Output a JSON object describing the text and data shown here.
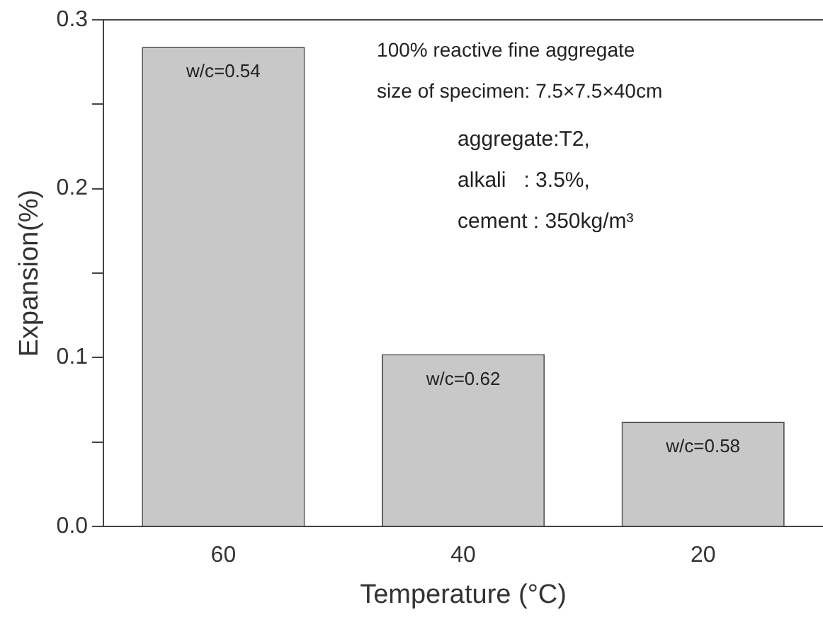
{
  "chart_data": {
    "type": "bar",
    "xlabel": "Temperature (°C)",
    "ylabel": "Expansion(%)",
    "categories": [
      "60",
      "40",
      "20"
    ],
    "values": [
      0.284,
      0.102,
      0.062
    ],
    "color": "#c8c8c8",
    "ylim": [
      0,
      0.3
    ],
    "yticks": [
      {
        "value": 0,
        "label": "0.0"
      },
      {
        "value": 0.05,
        "label": null
      },
      {
        "value": 0.1,
        "label": "0.1"
      },
      {
        "value": 0.15,
        "label": null
      },
      {
        "value": 0.2,
        "label": "0.2"
      },
      {
        "value": 0.25,
        "label": null
      },
      {
        "value": 0.3,
        "label": "0.3"
      }
    ],
    "grid": false,
    "legend": false,
    "annotations": [
      {
        "text": "w/c=0.54",
        "x": "60",
        "y": 0.284
      },
      {
        "text": "w/c=0.62",
        "x": "40",
        "y": 0.102
      },
      {
        "text": "w/c=0.58",
        "x": "20",
        "y": 0.062
      },
      "100% reactive fine aggregate",
      "size of specimen: 7.5×7.5×40cm",
      "aggregate:T2,",
      "alkali   : 3.5%,",
      "cement : 350kg/m³"
    ]
  }
}
